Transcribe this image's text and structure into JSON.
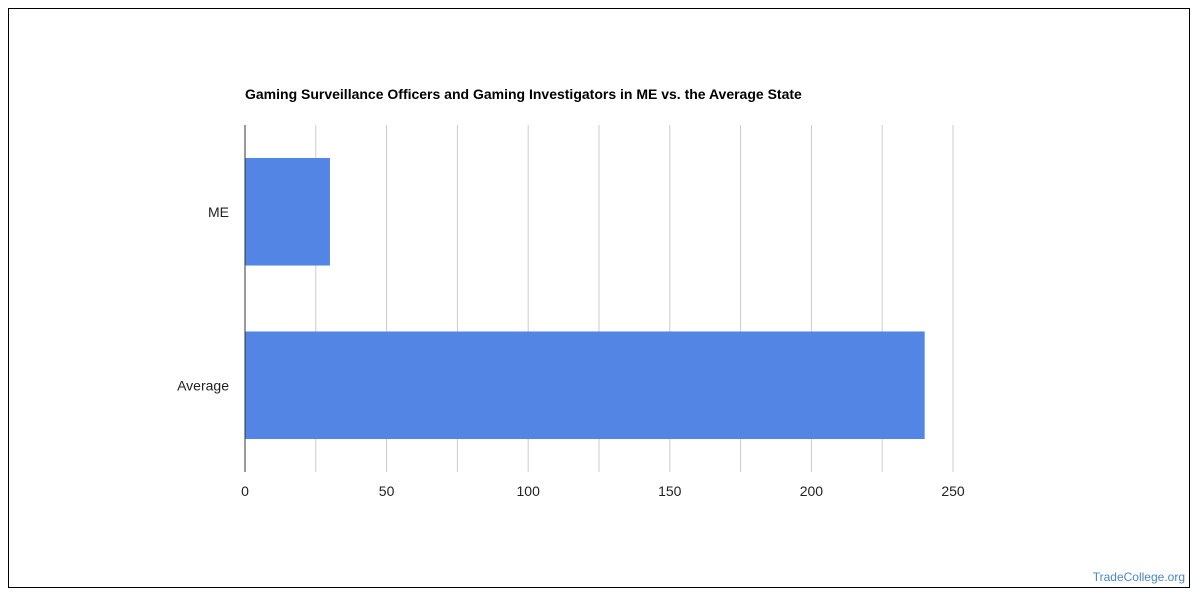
{
  "colors": {
    "bar": "#5385e4",
    "grid": "#cccccc",
    "axis": "#333333",
    "source": "#4a86c8"
  },
  "source_label": "TradeCollege.org",
  "chart_data": {
    "type": "bar",
    "orientation": "horizontal",
    "title": "Gaming Surveillance Officers and Gaming Investigators in ME vs. the Average State",
    "categories": [
      "ME",
      "Average"
    ],
    "values": [
      30,
      240
    ],
    "xlabel": "",
    "ylabel": "",
    "xlim": [
      0,
      250
    ],
    "xticks": [
      0,
      50,
      100,
      150,
      200,
      250
    ],
    "grid": true,
    "legend": "none"
  }
}
